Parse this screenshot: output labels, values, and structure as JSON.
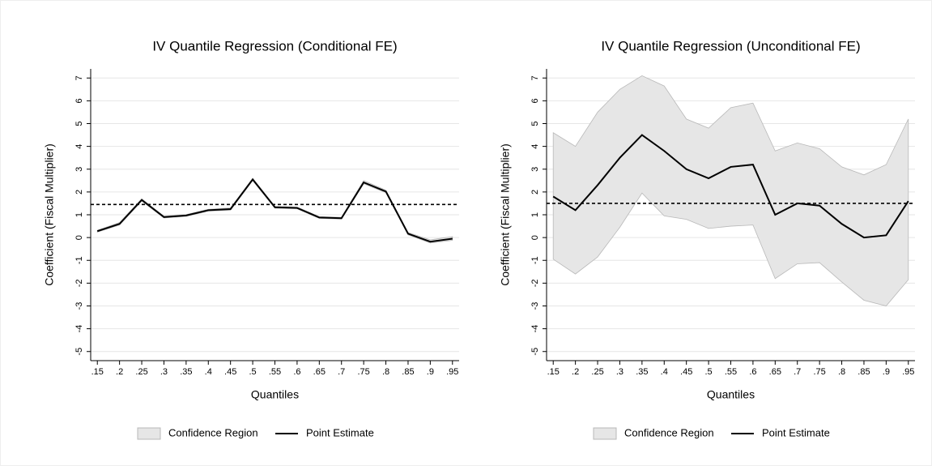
{
  "chart_data": [
    {
      "type": "line",
      "title": "IV Quantile Regression (Conditional FE)",
      "xlabel": "Quantiles",
      "ylabel": "Coefficient (Fiscal Multiplier)",
      "x": [
        0.15,
        0.2,
        0.25,
        0.3,
        0.35,
        0.4,
        0.45,
        0.5,
        0.55,
        0.6,
        0.65,
        0.7,
        0.75,
        0.8,
        0.85,
        0.9,
        0.95
      ],
      "xlim": [
        0.135,
        0.965
      ],
      "xticks": [
        {
          "value": 0.15,
          "label": ".15"
        },
        {
          "value": 0.2,
          "label": ".2"
        },
        {
          "value": 0.25,
          "label": ".25"
        },
        {
          "value": 0.3,
          "label": ".3"
        },
        {
          "value": 0.35,
          "label": ".35"
        },
        {
          "value": 0.4,
          "label": ".4"
        },
        {
          "value": 0.45,
          "label": ".45"
        },
        {
          "value": 0.5,
          "label": ".5"
        },
        {
          "value": 0.55,
          "label": ".55"
        },
        {
          "value": 0.6,
          "label": ".6"
        },
        {
          "value": 0.65,
          "label": ".65"
        },
        {
          "value": 0.7,
          "label": ".7"
        },
        {
          "value": 0.75,
          "label": ".75"
        },
        {
          "value": 0.8,
          "label": ".8"
        },
        {
          "value": 0.85,
          "label": ".85"
        },
        {
          "value": 0.9,
          "label": ".9"
        },
        {
          "value": 0.95,
          "label": ".95"
        }
      ],
      "ylim": [
        -5.4,
        7.4
      ],
      "yticks": [
        -5,
        -4,
        -3,
        -2,
        -1,
        0,
        1,
        2,
        3,
        4,
        5,
        6,
        7
      ],
      "grid": true,
      "hline": 1.45,
      "series": [
        {
          "name": "Confidence Region",
          "type": "band",
          "color": "#e6e6e6",
          "lower": [
            0.24,
            0.55,
            1.6,
            0.86,
            0.93,
            1.16,
            1.2,
            2.5,
            1.29,
            1.26,
            0.84,
            0.81,
            2.36,
            1.97,
            0.12,
            -0.24,
            -0.12
          ],
          "upper": [
            0.32,
            0.66,
            1.7,
            0.94,
            1.01,
            1.24,
            1.3,
            2.6,
            1.37,
            1.34,
            0.92,
            0.89,
            2.5,
            2.08,
            0.22,
            -0.1,
            0.04
          ]
        },
        {
          "name": "Point Estimate",
          "type": "line",
          "color": "#000000",
          "values": [
            0.28,
            0.6,
            1.65,
            0.9,
            0.97,
            1.2,
            1.25,
            2.55,
            1.33,
            1.3,
            0.88,
            0.85,
            2.42,
            2.02,
            0.17,
            -0.18,
            -0.05
          ]
        }
      ]
    },
    {
      "type": "line",
      "title": "IV Quantile Regression (Unconditional FE)",
      "xlabel": "Quantiles",
      "ylabel": "Coefficient (Fiscal Multiplier)",
      "x": [
        0.15,
        0.2,
        0.25,
        0.3,
        0.35,
        0.4,
        0.45,
        0.5,
        0.55,
        0.6,
        0.65,
        0.7,
        0.75,
        0.8,
        0.85,
        0.9,
        0.95
      ],
      "xlim": [
        0.135,
        0.965
      ],
      "xticks": [
        {
          "value": 0.15,
          "label": ".15"
        },
        {
          "value": 0.2,
          "label": ".2"
        },
        {
          "value": 0.25,
          "label": ".25"
        },
        {
          "value": 0.3,
          "label": ".3"
        },
        {
          "value": 0.35,
          "label": ".35"
        },
        {
          "value": 0.4,
          "label": ".4"
        },
        {
          "value": 0.45,
          "label": ".45"
        },
        {
          "value": 0.5,
          "label": ".5"
        },
        {
          "value": 0.55,
          "label": ".55"
        },
        {
          "value": 0.6,
          "label": ".6"
        },
        {
          "value": 0.65,
          "label": ".65"
        },
        {
          "value": 0.7,
          "label": ".7"
        },
        {
          "value": 0.75,
          "label": ".75"
        },
        {
          "value": 0.8,
          "label": ".8"
        },
        {
          "value": 0.85,
          "label": ".85"
        },
        {
          "value": 0.9,
          "label": ".9"
        },
        {
          "value": 0.95,
          "label": ".95"
        }
      ],
      "ylim": [
        -5.4,
        7.4
      ],
      "yticks": [
        -5,
        -4,
        -3,
        -2,
        -1,
        0,
        1,
        2,
        3,
        4,
        5,
        6,
        7
      ],
      "grid": true,
      "hline": 1.5,
      "series": [
        {
          "name": "Confidence Region",
          "type": "band",
          "color": "#e6e6e6",
          "lower": [
            -0.95,
            -1.6,
            -0.85,
            0.45,
            1.95,
            0.95,
            0.8,
            0.4,
            0.5,
            0.55,
            -1.8,
            -1.15,
            -1.1,
            -1.95,
            -2.75,
            -3.0,
            -1.85
          ],
          "upper": [
            4.6,
            4.0,
            5.5,
            6.5,
            7.1,
            6.65,
            5.2,
            4.8,
            5.7,
            5.9,
            3.8,
            4.15,
            3.9,
            3.1,
            2.75,
            3.2,
            5.2
          ]
        },
        {
          "name": "Point Estimate",
          "type": "line",
          "color": "#000000",
          "values": [
            1.8,
            1.2,
            2.3,
            3.5,
            4.5,
            3.8,
            3.0,
            2.6,
            3.1,
            3.2,
            1.0,
            1.5,
            1.4,
            0.6,
            0.0,
            0.1,
            1.6
          ]
        }
      ]
    }
  ]
}
